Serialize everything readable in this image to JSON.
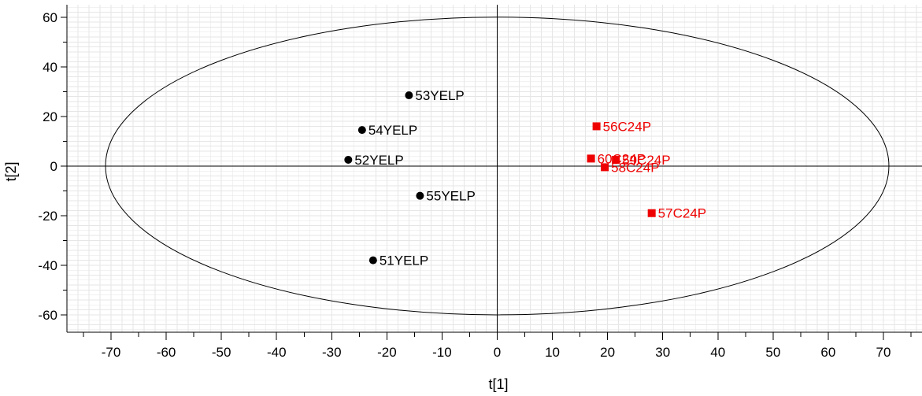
{
  "chart_data": {
    "type": "scatter",
    "title": "",
    "xlabel": "t[1]",
    "ylabel": "t[2]",
    "xlim": [
      -78,
      77
    ],
    "ylim": [
      -67,
      65
    ],
    "xticks": [
      -70,
      -60,
      -50,
      -40,
      -30,
      -20,
      -10,
      0,
      10,
      20,
      30,
      40,
      50,
      60,
      70
    ],
    "yticks": [
      -60,
      -40,
      -20,
      0,
      20,
      40,
      60
    ],
    "grid": true,
    "ellipse": {
      "rx": 71,
      "ry": 60
    },
    "colors": {
      "YELP": "#000000",
      "C24P": "#ee0000",
      "grid": "#e6e6e6"
    },
    "series": [
      {
        "marker": "circle",
        "color": "#000000",
        "points": [
          {
            "label": "53YELP",
            "x": -16,
            "y": 28.5
          },
          {
            "label": "54YELP",
            "x": -24.5,
            "y": 14.5
          },
          {
            "label": "52YELP",
            "x": -27,
            "y": 2.5
          },
          {
            "label": "55YELP",
            "x": -14,
            "y": -12
          },
          {
            "label": "51YELP",
            "x": -22.5,
            "y": -38
          }
        ]
      },
      {
        "marker": "square",
        "color": "#ee0000",
        "points": [
          {
            "label": "56C24P",
            "x": 18,
            "y": 16
          },
          {
            "label": "60C24P",
            "x": 17,
            "y": 3
          },
          {
            "label": "59C24P",
            "x": 21.5,
            "y": 2.5
          },
          {
            "label": "58C24P",
            "x": 19.5,
            "y": -0.5
          },
          {
            "label": "57C24P",
            "x": 28,
            "y": -19
          }
        ]
      }
    ]
  }
}
